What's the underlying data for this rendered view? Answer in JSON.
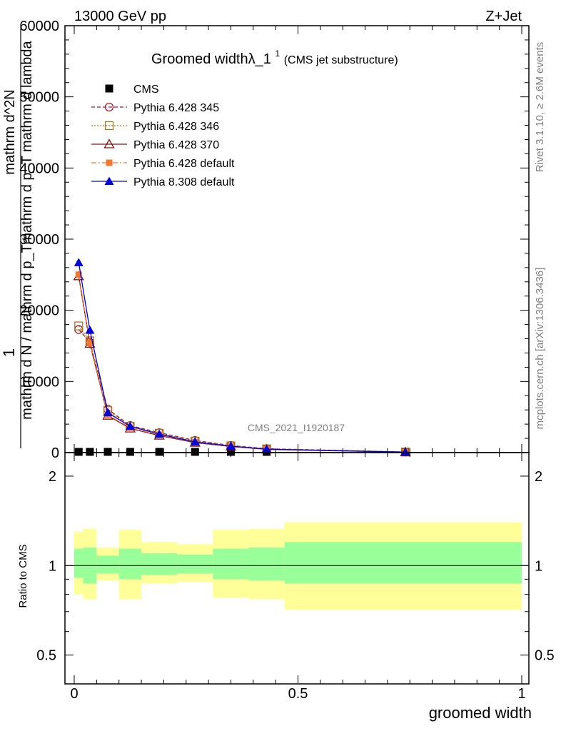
{
  "header": {
    "left_label": "13000 GeV pp",
    "right_label": "Z+Jet"
  },
  "side_labels": {
    "rivet": "Rivet 3.1.10, ≥ 2.6M events",
    "mcplots": "mcplots.cern.ch [arXiv:1306.3436]"
  },
  "chart_data": [
    {
      "type": "line",
      "title": "Groomed widthλ_1",
      "title_superscript": "1",
      "subtitle": "(CMS jet substructure)",
      "watermark": "CMS_2021_I1920187",
      "xlabel": "",
      "ylabel_lines": [
        "1",
        "mathrm d N / mathrm d p_T",
        "mathrm d p_T mathrm d lambda",
        "mathrm d^2N"
      ],
      "xlim": [
        -0.02,
        1.02
      ],
      "ylim": [
        0,
        60000
      ],
      "yticks": [
        0,
        10000,
        20000,
        30000,
        40000,
        50000,
        60000
      ],
      "ytick_labels": [
        "0",
        "10000",
        "20000",
        "30000",
        "40000",
        "50000",
        "60000"
      ],
      "legend_position": "top-left",
      "series": [
        {
          "name": "CMS",
          "style": "marker",
          "marker": "square",
          "color": "#000000",
          "x": [
            0.01,
            0.035,
            0.075,
            0.125,
            0.19,
            0.27,
            0.35,
            0.43,
            0.74
          ],
          "y": [
            0,
            0,
            0,
            0,
            0,
            0,
            0,
            0,
            0
          ]
        },
        {
          "name": "Pythia 6.428 345",
          "style": "dashed",
          "marker": "circle-open",
          "color": "#b2182b",
          "x": [
            0.01,
            0.035,
            0.075,
            0.125,
            0.19,
            0.27,
            0.35,
            0.43,
            0.74
          ],
          "y": [
            17300,
            15500,
            6100,
            3800,
            2800,
            1700,
            1000,
            550,
            80
          ]
        },
        {
          "name": "Pythia 6.428 346",
          "style": "dotted",
          "marker": "square-open",
          "color": "#a07a25",
          "x": [
            0.01,
            0.035,
            0.075,
            0.125,
            0.19,
            0.27,
            0.35,
            0.43,
            0.74
          ],
          "y": [
            17800,
            15700,
            5900,
            3700,
            2700,
            1600,
            950,
            520,
            75
          ]
        },
        {
          "name": "Pythia 6.428 370",
          "style": "solid",
          "marker": "triangle-open",
          "color": "#8b1010",
          "x": [
            0.01,
            0.035,
            0.075,
            0.125,
            0.19,
            0.27,
            0.35,
            0.43,
            0.74
          ],
          "y": [
            24800,
            15300,
            5200,
            3400,
            2400,
            1400,
            850,
            450,
            60
          ]
        },
        {
          "name": "Pythia 6.428 default",
          "style": "dashdot",
          "marker": "square-filled",
          "color": "#f07830",
          "x": [
            0.01,
            0.035,
            0.075,
            0.125,
            0.19,
            0.27,
            0.35,
            0.43,
            0.74
          ],
          "y": [
            25000,
            15400,
            5300,
            3500,
            2500,
            1450,
            880,
            470,
            65
          ]
        },
        {
          "name": "Pythia 8.308 default",
          "style": "solid",
          "marker": "triangle-filled",
          "color": "#0000dd",
          "x": [
            0.01,
            0.035,
            0.075,
            0.125,
            0.19,
            0.27,
            0.35,
            0.43,
            0.74
          ],
          "y": [
            26700,
            17200,
            5600,
            3700,
            2600,
            1500,
            900,
            480,
            70
          ]
        }
      ]
    },
    {
      "type": "area",
      "ylabel": "Ratio to CMS",
      "xlabel": "groomed width",
      "ylim": [
        0.4,
        2.4
      ],
      "yscale": "log",
      "yticks": [
        0.5,
        1,
        2
      ],
      "ytick_labels": [
        "0.5",
        "1",
        "2"
      ],
      "xticks": [
        0,
        0.5,
        1
      ],
      "xtick_labels": [
        "0",
        "0.5",
        "1"
      ],
      "reference_line": 1,
      "band_colors": {
        "inner": "#99ff99",
        "outer": "#ffff99"
      },
      "bins": [
        {
          "x0": 0.0,
          "x1": 0.02,
          "inner": [
            0.91,
            1.14
          ],
          "outer": [
            0.8,
            1.3
          ]
        },
        {
          "x0": 0.02,
          "x1": 0.05,
          "inner": [
            0.87,
            1.15
          ],
          "outer": [
            0.77,
            1.33
          ]
        },
        {
          "x0": 0.05,
          "x1": 0.1,
          "inner": [
            0.94,
            1.08
          ],
          "outer": [
            0.89,
            1.15
          ]
        },
        {
          "x0": 0.1,
          "x1": 0.15,
          "inner": [
            0.9,
            1.14
          ],
          "outer": [
            0.77,
            1.32
          ]
        },
        {
          "x0": 0.15,
          "x1": 0.23,
          "inner": [
            0.93,
            1.1
          ],
          "outer": [
            0.87,
            1.2
          ]
        },
        {
          "x0": 0.23,
          "x1": 0.31,
          "inner": [
            0.94,
            1.09
          ],
          "outer": [
            0.88,
            1.18
          ]
        },
        {
          "x0": 0.31,
          "x1": 0.39,
          "inner": [
            0.9,
            1.14
          ],
          "outer": [
            0.78,
            1.32
          ]
        },
        {
          "x0": 0.39,
          "x1": 0.47,
          "inner": [
            0.89,
            1.15
          ],
          "outer": [
            0.77,
            1.33
          ]
        },
        {
          "x0": 0.47,
          "x1": 1.0,
          "inner": [
            0.87,
            1.2
          ],
          "outer": [
            0.71,
            1.4
          ]
        }
      ]
    }
  ]
}
